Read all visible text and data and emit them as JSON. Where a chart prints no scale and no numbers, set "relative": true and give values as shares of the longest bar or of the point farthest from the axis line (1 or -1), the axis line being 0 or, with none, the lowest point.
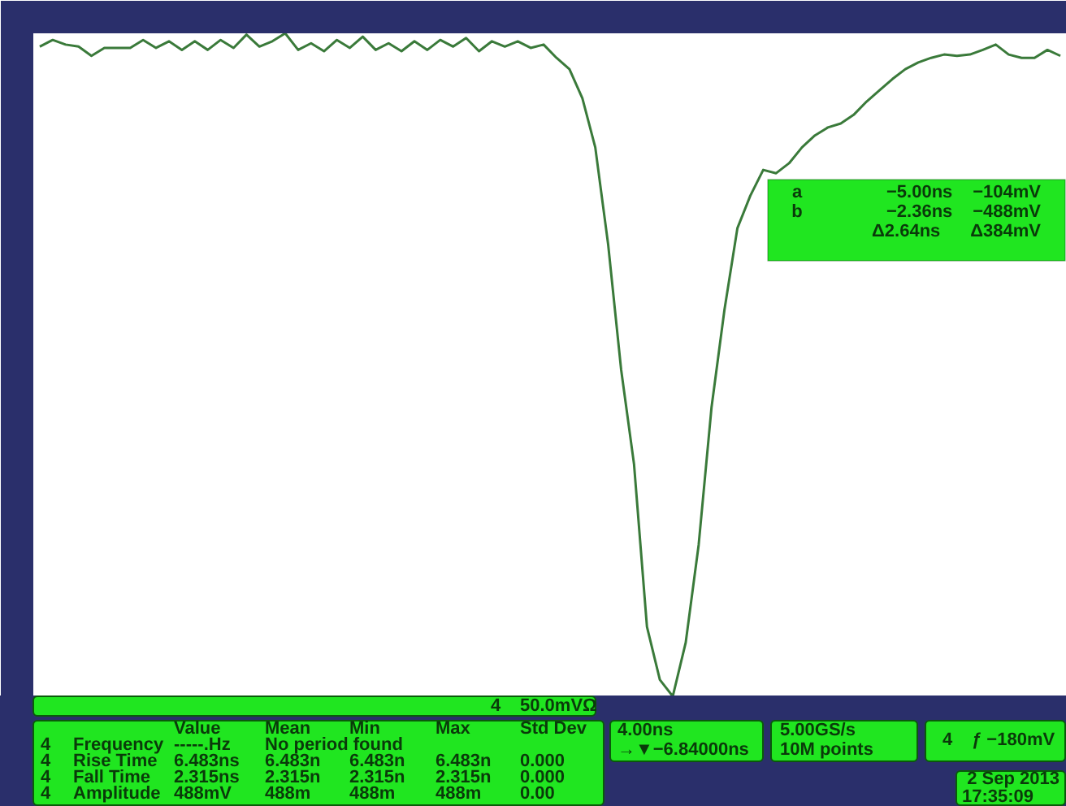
{
  "chart_data": {
    "type": "line",
    "relative": true,
    "tick_labels": false,
    "marker": "none",
    "line_style": "solid",
    "categories": [
      null,
      null,
      null,
      null,
      null,
      null,
      null,
      null,
      null,
      null,
      null,
      null,
      null,
      null,
      null,
      null,
      null,
      null,
      null,
      null,
      null,
      null,
      null,
      null,
      null,
      null,
      null,
      null,
      null,
      null,
      null,
      null,
      null,
      null,
      null,
      null,
      null,
      null,
      null,
      null,
      null,
      null,
      null,
      null,
      null,
      null,
      null,
      null,
      null,
      null,
      null,
      null,
      null,
      null,
      null,
      null,
      null,
      null,
      null,
      null,
      null,
      null,
      null,
      null,
      null,
      null,
      null,
      null,
      null,
      null,
      null,
      null,
      null,
      null,
      null,
      null,
      null,
      null,
      null,
      null
    ],
    "series": [
      {
        "color": "#3a7a3a",
        "values": [
          0.98,
          0.99,
          0.983,
          0.98,
          0.966,
          0.978,
          0.978,
          0.978,
          0.99,
          0.978,
          0.988,
          0.975,
          0.988,
          0.975,
          0.99,
          0.978,
          0.998,
          0.98,
          0.988,
          1.0,
          0.975,
          0.985,
          0.973,
          0.99,
          0.978,
          0.995,
          0.975,
          0.985,
          0.973,
          0.988,
          0.975,
          0.99,
          0.98,
          0.993,
          0.973,
          0.988,
          0.98,
          0.988,
          0.978,
          0.983,
          0.963,
          0.946,
          0.902,
          0.828,
          0.681,
          0.493,
          0.35,
          0.105,
          0.025,
          0.0,
          0.081,
          0.228,
          0.436,
          0.583,
          0.706,
          0.755,
          0.794,
          0.789,
          0.804,
          0.828,
          0.846,
          0.858,
          0.864,
          0.877,
          0.897,
          0.914,
          0.931,
          0.946,
          0.956,
          0.963,
          0.968,
          0.966,
          0.968,
          0.975,
          0.983,
          0.968,
          0.963,
          0.963,
          0.975,
          0.966
        ]
      }
    ],
    "annotations": [
      "a",
      "−5.00ns",
      "−104mV",
      "b",
      "−2.36ns",
      "−488mV",
      "Δ2.64ns",
      "Δ384mV",
      "4",
      "50.0mVΩ",
      "Value",
      "Mean",
      "Min",
      "Max",
      "Std Dev",
      "4",
      "Frequency",
      "-----.Hz",
      "No period found",
      "4",
      "Rise Time",
      "6.483ns",
      "6.483n",
      "6.483n",
      "6.483n",
      "0.000",
      "4",
      "Fall Time",
      "2.315ns",
      "2.315n",
      "2.315n",
      "2.315n",
      "0.000",
      "4",
      "Amplitude",
      "488mV",
      "488m",
      "488m",
      "488m",
      "0.00",
      "4.00ns",
      "→▼−6.84000ns",
      "5.00GS/s",
      "10M points",
      "4",
      "ƒ −180mV",
      "2 Sep 2013",
      "17:35:09"
    ]
  }
}
